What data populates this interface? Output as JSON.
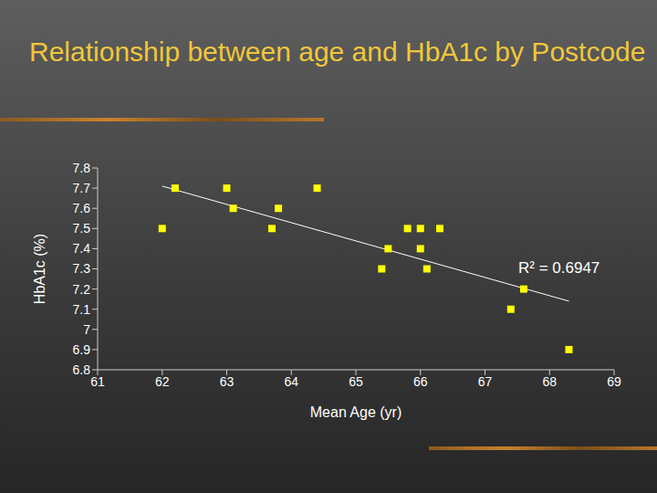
{
  "chart_data": {
    "type": "scatter",
    "title": "Relationship between age and HbA1c by Postcode",
    "x_label": "Mean Age (yr)",
    "y_label": "HbA1c (%)",
    "x": [
      62.0,
      62.2,
      63.0,
      63.1,
      63.7,
      63.8,
      64.4,
      65.4,
      65.5,
      65.8,
      66.0,
      66.0,
      66.1,
      66.3,
      67.4,
      67.6,
      68.3
    ],
    "values": [
      7.5,
      7.7,
      7.7,
      7.6,
      7.5,
      7.6,
      7.7,
      7.3,
      7.4,
      7.5,
      7.5,
      7.4,
      7.3,
      7.5,
      7.1,
      7.2,
      6.9
    ],
    "color": "#ffff00",
    "marker": "square",
    "xlim": [
      61,
      69
    ],
    "xticks": [
      61,
      62,
      63,
      64,
      65,
      66,
      67,
      68,
      69
    ],
    "ylim": [
      6.8,
      7.8
    ],
    "yticks": [
      6.8,
      6.9,
      7,
      7.1,
      7.2,
      7.3,
      7.4,
      7.5,
      7.6,
      7.7,
      7.8
    ],
    "grid": false,
    "trendline": {
      "x": [
        62,
        68.3
      ],
      "y": [
        7.71,
        7.14
      ],
      "color": "#ffffff"
    },
    "annotations": [
      "R² = 0.6947"
    ]
  }
}
